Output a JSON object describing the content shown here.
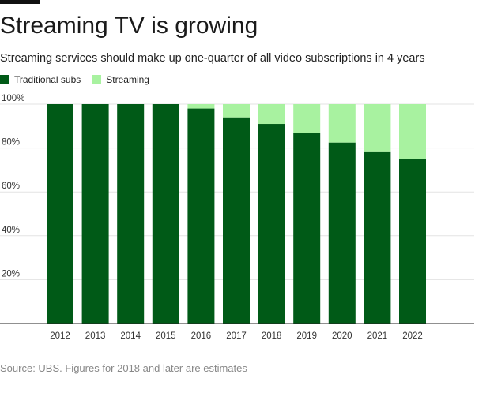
{
  "title": "Streaming TV is growing",
  "subtitle": "Streaming services should make up one-quarter of all video subscriptions in 4 years",
  "legend": [
    {
      "label": "Traditional subs",
      "color": "#005a17"
    },
    {
      "label": "Streaming",
      "color": "#a8f2a0"
    }
  ],
  "source": "Source: UBS. Figures for 2018 and later are estimates",
  "chart_data": {
    "type": "bar",
    "stacked": true,
    "title": "Streaming TV is growing",
    "categories": [
      "2012",
      "2013",
      "2014",
      "2015",
      "2016",
      "2017",
      "2018",
      "2019",
      "2020",
      "2021",
      "2022"
    ],
    "series": [
      {
        "name": "Traditional subs",
        "color": "#005a17",
        "values": [
          100,
          100,
          100,
          100,
          98,
          94,
          91,
          87,
          82.5,
          78.5,
          75
        ]
      },
      {
        "name": "Streaming",
        "color": "#a8f2a0",
        "values": [
          0,
          0,
          0,
          0,
          2,
          6,
          9,
          13,
          17.5,
          21.5,
          25
        ]
      }
    ],
    "yticks": [
      "20%",
      "40%",
      "60%",
      "80%",
      "100%"
    ],
    "ytick_values": [
      20,
      40,
      60,
      80,
      100
    ],
    "ylim": [
      0,
      100
    ],
    "xlabel": "",
    "ylabel": "",
    "grid": true
  }
}
